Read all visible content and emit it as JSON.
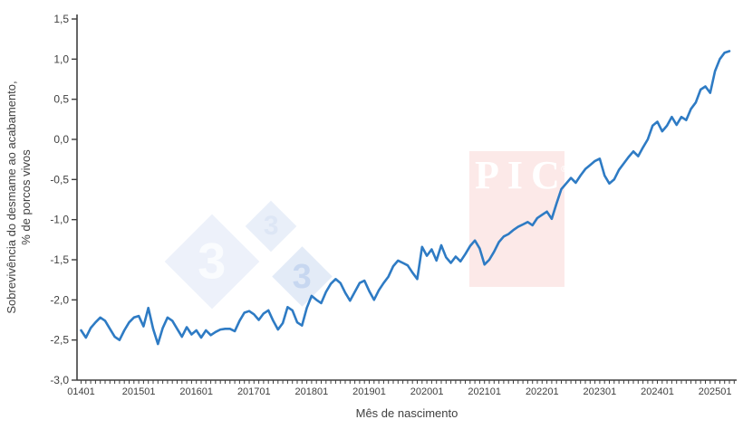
{
  "colors": {
    "line": "#2e7bc4",
    "axis": "#3f3f3f",
    "text": "#404040",
    "pic_bg": "#fce9e8",
    "pic_fg": "#ffffff",
    "diamond_big_bg": "#edf1fa",
    "diamond_top_bg": "#e9eff9",
    "diamond_bottom_bg": "#e3ebf7",
    "digit_big": "#fafcfe",
    "digit_top": "#dde6f5",
    "digit_bottom": "#c7d7f0"
  },
  "watermarks": {
    "pig333_digits": [
      "3",
      "3",
      "3"
    ],
    "pic_text": "PIC",
    "pic_reg": "®"
  },
  "chart_data": {
    "type": "line",
    "title": "",
    "xlabel": "Mês de nascimento",
    "ylabel_line1": "Sobrevivência do desmame ao acabamento,",
    "ylabel_line2": "% de porcos vivos",
    "ylim": [
      -3.0,
      1.5
    ],
    "y_tick_step": 0.5,
    "y_tick_labels": [
      "1,5",
      "1,0",
      "0,5",
      "0,0",
      "-0,5",
      "-1,0",
      "-1,5",
      "-2,0",
      "-2,5",
      "-3,0"
    ],
    "x_tick_labels": [
      "01401",
      "201501",
      "201601",
      "201701",
      "201801",
      "201901",
      "202001",
      "202101",
      "202201",
      "202301",
      "202401",
      "202501"
    ],
    "x_start": "201401",
    "x_end": "202504",
    "x_frequency": "monthly",
    "grid": false,
    "legend": false,
    "line_color": "#2e7bc4",
    "series": [
      {
        "name": "Sobrevivência do desmame ao acabamento (% de porcos vivos)",
        "values": [
          -2.38,
          -2.47,
          -2.35,
          -2.28,
          -2.22,
          -2.26,
          -2.36,
          -2.46,
          -2.5,
          -2.38,
          -2.28,
          -2.22,
          -2.2,
          -2.33,
          -2.1,
          -2.36,
          -2.55,
          -2.35,
          -2.22,
          -2.26,
          -2.36,
          -2.46,
          -2.34,
          -2.43,
          -2.38,
          -2.47,
          -2.38,
          -2.44,
          -2.4,
          -2.37,
          -2.36,
          -2.36,
          -2.39,
          -2.26,
          -2.16,
          -2.14,
          -2.18,
          -2.25,
          -2.17,
          -2.13,
          -2.26,
          -2.37,
          -2.29,
          -2.09,
          -2.13,
          -2.28,
          -2.32,
          -2.1,
          -1.95,
          -2.0,
          -2.04,
          -1.9,
          -1.8,
          -1.74,
          -1.79,
          -1.91,
          -2.01,
          -1.9,
          -1.79,
          -1.76,
          -1.89,
          -2.0,
          -1.88,
          -1.79,
          -1.71,
          -1.58,
          -1.51,
          -1.54,
          -1.57,
          -1.66,
          -1.74,
          -1.34,
          -1.45,
          -1.37,
          -1.51,
          -1.32,
          -1.47,
          -1.54,
          -1.46,
          -1.52,
          -1.43,
          -1.33,
          -1.26,
          -1.36,
          -1.56,
          -1.5,
          -1.4,
          -1.28,
          -1.21,
          -1.18,
          -1.13,
          -1.09,
          -1.06,
          -1.03,
          -1.07,
          -0.98,
          -0.94,
          -0.9,
          -0.99,
          -0.8,
          -0.62,
          -0.55,
          -0.48,
          -0.54,
          -0.45,
          -0.37,
          -0.32,
          -0.27,
          -0.24,
          -0.45,
          -0.55,
          -0.5,
          -0.38,
          -0.3,
          -0.22,
          -0.15,
          -0.21,
          -0.1,
          0.0,
          0.17,
          0.22,
          0.1,
          0.17,
          0.28,
          0.18,
          0.28,
          0.24,
          0.38,
          0.46,
          0.62,
          0.66,
          0.58,
          0.85,
          1.0,
          1.08,
          1.1
        ]
      }
    ]
  }
}
